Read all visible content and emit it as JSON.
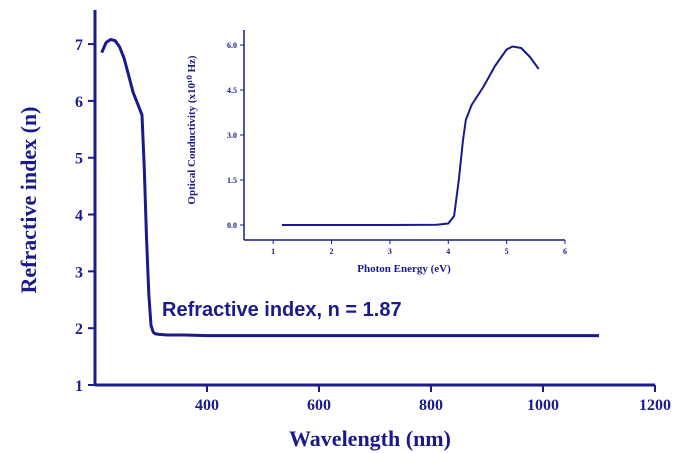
{
  "chart_data": [
    {
      "type": "line",
      "title": "",
      "xlabel": "Wavelength (nm)",
      "ylabel": "Refractive index (n)",
      "xlim": [
        200,
        1200
      ],
      "ylim": [
        1,
        7.6
      ],
      "x_ticks": [
        400,
        600,
        800,
        1000,
        1200
      ],
      "y_ticks": [
        1,
        2,
        3,
        4,
        5,
        6,
        7
      ],
      "grid": false,
      "annotation": "Refractive index, n = 1.87",
      "color": "#1a1a8c",
      "series": [
        {
          "x": [
            212,
            220,
            228,
            236,
            244,
            252,
            260,
            268,
            276,
            284,
            288,
            292,
            296,
            300,
            304,
            308,
            315,
            330,
            360,
            400,
            500,
            600,
            700,
            800,
            900,
            1000,
            1100
          ],
          "y": [
            6.85,
            7.03,
            7.08,
            7.06,
            6.95,
            6.75,
            6.45,
            6.15,
            5.95,
            5.75,
            4.8,
            3.6,
            2.6,
            2.05,
            1.93,
            1.9,
            1.89,
            1.88,
            1.88,
            1.87,
            1.87,
            1.87,
            1.87,
            1.87,
            1.87,
            1.87,
            1.87
          ]
        }
      ]
    },
    {
      "type": "line",
      "title": "",
      "xlabel": "Photon Energy (eV)",
      "ylabel": "Optical Conductivity (x10¹⁰ Hz)",
      "xlim": [
        0.5,
        6
      ],
      "ylim": [
        -0.5,
        6.5
      ],
      "x_ticks": [
        1,
        2,
        3,
        4,
        5,
        6
      ],
      "y_ticks": [
        0.0,
        1.5,
        3.0,
        4.5,
        6.0
      ],
      "y_tick_labels": [
        "0.0",
        "1.5",
        "3.0",
        "4.5",
        "6.0"
      ],
      "grid": false,
      "color": "#1a1a8c",
      "series": [
        {
          "x": [
            1.15,
            2.0,
            3.0,
            3.8,
            4.0,
            4.1,
            4.18,
            4.25,
            4.3,
            4.4,
            4.6,
            4.8,
            5.0,
            5.1,
            5.25,
            5.4,
            5.55
          ],
          "y": [
            0.0,
            0.0,
            0.0,
            0.01,
            0.05,
            0.3,
            1.5,
            2.8,
            3.5,
            4.0,
            4.6,
            5.3,
            5.85,
            5.95,
            5.9,
            5.6,
            5.2
          ]
        }
      ]
    }
  ]
}
